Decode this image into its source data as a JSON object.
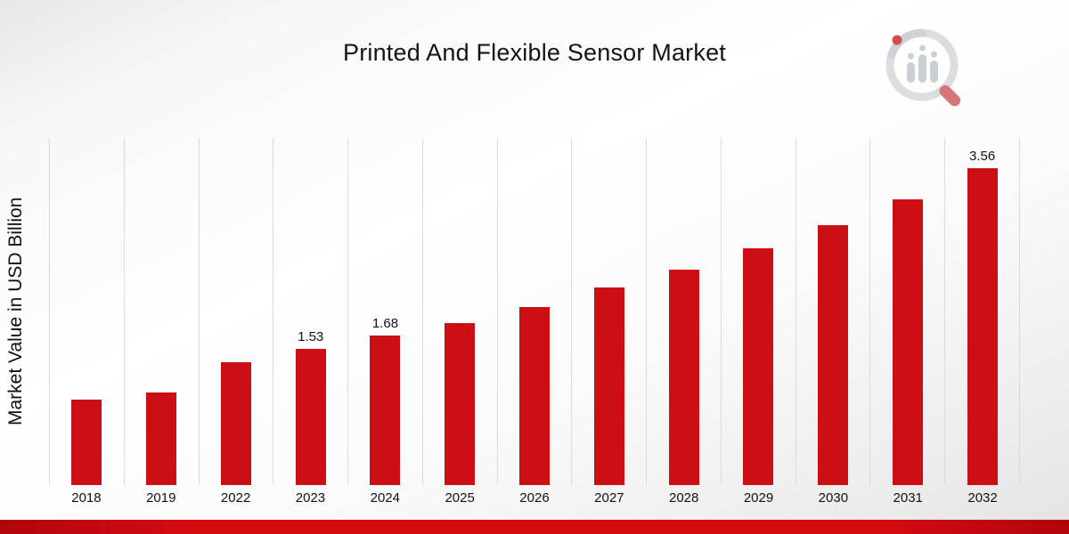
{
  "chart_data": {
    "type": "bar",
    "title": "Printed And Flexible Sensor Market",
    "xlabel": "",
    "ylabel": "Market Value in USD Billion",
    "categories": [
      "2018",
      "2019",
      "2022",
      "2023",
      "2024",
      "2025",
      "2026",
      "2027",
      "2028",
      "2029",
      "2030",
      "2031",
      "2032"
    ],
    "values": [
      0.96,
      1.04,
      1.38,
      1.53,
      1.68,
      1.82,
      2.0,
      2.22,
      2.42,
      2.66,
      2.92,
      3.21,
      3.56
    ],
    "labeled_points": [
      {
        "category": "2023",
        "label": "1.53"
      },
      {
        "category": "2024",
        "label": "1.68"
      },
      {
        "category": "2032",
        "label": "3.56"
      }
    ],
    "ylim": [
      0,
      3.9
    ],
    "grid": "vertical",
    "legend": "none",
    "bar_color": "#cc0f15"
  },
  "branding": {
    "logo_icon": "magnifier-bar-chart-logo"
  }
}
